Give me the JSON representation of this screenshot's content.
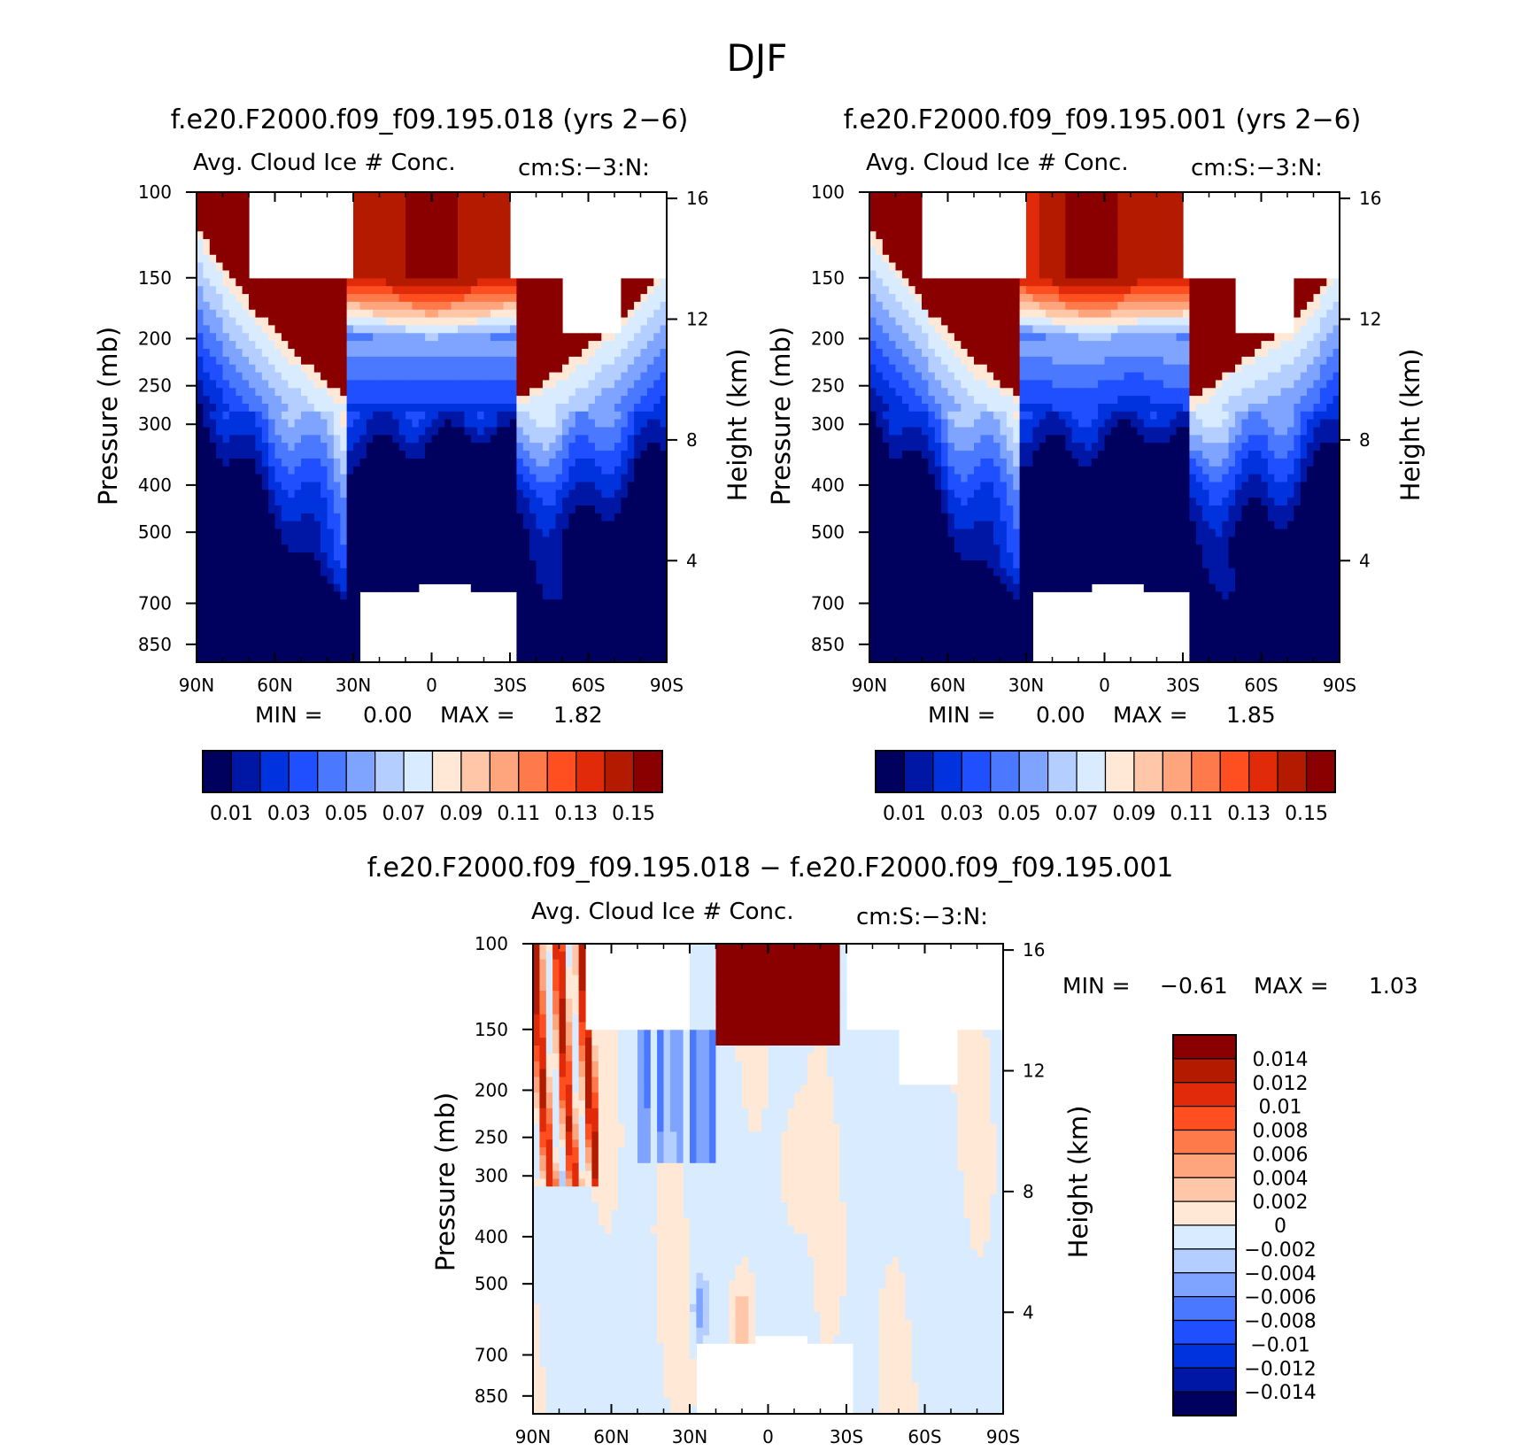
{
  "figure": {
    "title": "DJF"
  },
  "colors": {
    "seq": [
      "#00005e",
      "#0017a6",
      "#0033dd",
      "#1f4fff",
      "#4a79ff",
      "#7ea4ff",
      "#b4cfff",
      "#d9ecff",
      "#ffe8d6",
      "#ffc7a8",
      "#ffa57d",
      "#ff7a4a",
      "#ff4e1f",
      "#e02a0a",
      "#b31a00",
      "#8a0000"
    ],
    "diff": [
      "#00005e",
      "#0017a6",
      "#0033dd",
      "#1f4fff",
      "#4a79ff",
      "#7ea4ff",
      "#b4cfff",
      "#d9ecff",
      "#ffe8d6",
      "#ffc7a8",
      "#ffa57d",
      "#ff7a4a",
      "#ff4e1f",
      "#e02a0a",
      "#b31a00",
      "#8a0000"
    ]
  },
  "chart_data": [
    {
      "type": "heatmap",
      "title": "f.e20.F2000.f09_f09.195.018 (yrs 2−6)",
      "subtitle": "Avg. Cloud Ice # Conc.",
      "units": "cm:S:−3:N:",
      "ylabel": "Pressure (mb)",
      "y2label": "Height (km)",
      "x_ticks": [
        "90N",
        "60N",
        "30N",
        "0",
        "30S",
        "60S",
        "90S"
      ],
      "x_range": [
        90,
        -90
      ],
      "y_ticks": [
        100,
        150,
        200,
        250,
        300,
        400,
        500,
        700,
        850
      ],
      "y_range": [
        100,
        925
      ],
      "y_scale": "log",
      "y2_ticks": [
        16,
        12,
        8,
        4
      ],
      "stats": {
        "min_label": "MIN =",
        "min": "0.00",
        "max_label": "MAX =",
        "max": "1.82"
      },
      "colorbar_labels": [
        "0.01",
        "0.03",
        "0.05",
        "0.07",
        "0.09",
        "0.11",
        "0.13",
        "0.15"
      ],
      "grid": false
    },
    {
      "type": "heatmap",
      "title": "f.e20.F2000.f09_f09.195.001 (yrs 2−6)",
      "subtitle": "Avg. Cloud Ice # Conc.",
      "units": "cm:S:−3:N:",
      "ylabel": "Pressure (mb)",
      "y2label": "Height (km)",
      "x_ticks": [
        "90N",
        "60N",
        "30N",
        "0",
        "30S",
        "60S",
        "90S"
      ],
      "x_range": [
        90,
        -90
      ],
      "y_ticks": [
        100,
        150,
        200,
        250,
        300,
        400,
        500,
        700,
        850
      ],
      "y_range": [
        100,
        925
      ],
      "y_scale": "log",
      "y2_ticks": [
        16,
        12,
        8,
        4
      ],
      "stats": {
        "min_label": "MIN =",
        "min": "0.00",
        "max_label": "MAX =",
        "max": "1.85"
      },
      "colorbar_labels": [
        "0.01",
        "0.03",
        "0.05",
        "0.07",
        "0.09",
        "0.11",
        "0.13",
        "0.15"
      ],
      "grid": false
    },
    {
      "type": "heatmap",
      "title": "f.e20.F2000.f09_f09.195.018 − f.e20.F2000.f09_f09.195.001",
      "subtitle": "Avg. Cloud Ice # Conc.",
      "units": "cm:S:−3:N:",
      "ylabel": "Pressure (mb)",
      "y2label": "Height (km)",
      "x_ticks": [
        "90N",
        "60N",
        "30N",
        "0",
        "30S",
        "60S",
        "90S"
      ],
      "x_range": [
        90,
        -90
      ],
      "y_ticks": [
        100,
        150,
        200,
        250,
        300,
        400,
        500,
        700,
        850
      ],
      "y_range": [
        100,
        925
      ],
      "y_scale": "log",
      "y2_ticks": [
        16,
        12,
        8,
        4
      ],
      "stats": {
        "min_label": "MIN =",
        "min": "−0.61",
        "max_label": "MAX =",
        "max": "1.03"
      },
      "colorbar_labels": [
        "0.014",
        "0.012",
        "0.01",
        "0.008",
        "0.006",
        "0.004",
        "0.002",
        "0",
        "−0.002",
        "−0.004",
        "−0.006",
        "−0.008",
        "−0.01",
        "−0.012",
        "−0.014"
      ],
      "grid": false
    }
  ]
}
